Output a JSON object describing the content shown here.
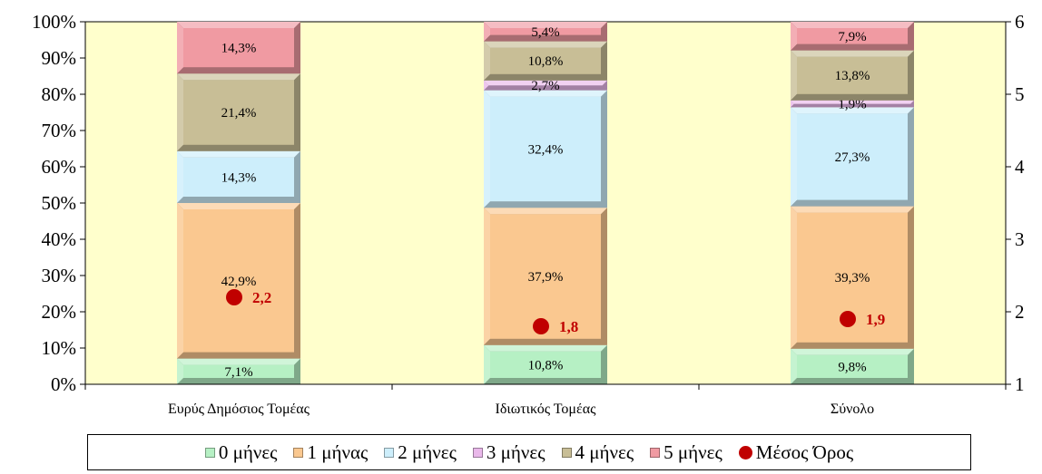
{
  "chart_data": {
    "type": "bar",
    "stacked": true,
    "categories": [
      "Ευρύς Δημόσιος Τομέας",
      "Ιδιωτικός Τομέας",
      "Σύνολο"
    ],
    "series": [
      {
        "name": "0 μήνες",
        "values": [
          7.1,
          10.8,
          9.8
        ],
        "labels": [
          "7,1%",
          "10,8%",
          "9,8%"
        ],
        "color": "#b6f0c4"
      },
      {
        "name": "1 μήνας",
        "values": [
          42.9,
          37.9,
          39.3
        ],
        "labels": [
          "42,9%",
          "37,9%",
          "39,3%"
        ],
        "color": "#fac890"
      },
      {
        "name": "2 μήνες",
        "values": [
          14.3,
          32.4,
          27.3
        ],
        "labels": [
          "14,3%",
          "32,4%",
          "27,3%"
        ],
        "color": "#cdeefb"
      },
      {
        "name": "3 μήνες",
        "values": [
          0,
          2.7,
          1.9
        ],
        "labels": [
          "",
          "2,7%",
          "1,9%"
        ],
        "color": "#e9b8ea"
      },
      {
        "name": "4 μήνες",
        "values": [
          21.4,
          10.8,
          13.8
        ],
        "labels": [
          "21,4%",
          "10,8%",
          "13,8%"
        ],
        "color": "#c8be96"
      },
      {
        "name": "5 μήνες",
        "values": [
          14.3,
          5.4,
          7.9
        ],
        "labels": [
          "14,3%",
          "5,4%",
          "7,9%"
        ],
        "color": "#f09aa2"
      }
    ],
    "average": {
      "name": "Μέσος Όρος",
      "values": [
        2.2,
        1.8,
        1.9
      ],
      "labels": [
        "2,2",
        "1,8",
        "1,9"
      ],
      "color": "#c00000"
    },
    "y_left": {
      "min": 0,
      "max": 100,
      "step": 10,
      "format": "percent"
    },
    "y_right": {
      "min": 1,
      "max": 6,
      "step": 1
    },
    "plot_background": "#ffffcc",
    "legend_position": "bottom"
  }
}
